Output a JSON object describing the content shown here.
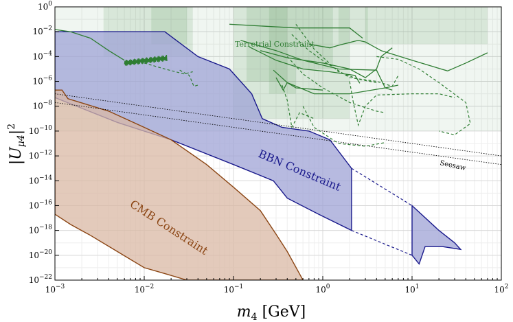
{
  "chart_data": {
    "type": "area",
    "xlabel": "m4 [GeV]",
    "ylabel": "|Uμ4|²",
    "xscale": "log",
    "yscale": "log",
    "xlim": [
      0.001,
      100
    ],
    "ylim": [
      1e-22,
      1
    ],
    "grid": true,
    "colors": {
      "terrestrial": "#2e7d32",
      "bbn_fill": "#9fa3d6",
      "bbn_edge": "#1a1a8c",
      "cmb_fill": "#d9b8a4",
      "cmb_edge": "#8b4513",
      "seesaw": "#000000"
    },
    "x_ticks": [
      {
        "value": 0.001,
        "base": "10",
        "exp": "−3"
      },
      {
        "value": 0.01,
        "base": "10",
        "exp": "−2"
      },
      {
        "value": 0.1,
        "base": "10",
        "exp": "−1"
      },
      {
        "value": 1,
        "base": "10",
        "exp": "0"
      },
      {
        "value": 10,
        "base": "10",
        "exp": "1"
      },
      {
        "value": 100,
        "base": "10",
        "exp": "2"
      }
    ],
    "y_ticks": [
      {
        "value": 1e-22,
        "base": "10",
        "exp": "−22"
      },
      {
        "value": 1e-20,
        "base": "10",
        "exp": "−20"
      },
      {
        "value": 1e-18,
        "base": "10",
        "exp": "−18"
      },
      {
        "value": 1e-16,
        "base": "10",
        "exp": "−16"
      },
      {
        "value": 1e-14,
        "base": "10",
        "exp": "−14"
      },
      {
        "value": 1e-12,
        "base": "10",
        "exp": "−12"
      },
      {
        "value": 1e-10,
        "base": "10",
        "exp": "−10"
      },
      {
        "value": 1e-08,
        "base": "10",
        "exp": "−8"
      },
      {
        "value": 1e-06,
        "base": "10",
        "exp": "−6"
      },
      {
        "value": 0.0001,
        "base": "10",
        "exp": "−4"
      },
      {
        "value": 0.01,
        "base": "10",
        "exp": "−2"
      },
      {
        "value": 1,
        "base": "10",
        "exp": "0"
      }
    ],
    "labels": {
      "terrestrial": "Terretrial Constraint",
      "bbn": "BBN Constraint",
      "cmb": "CMB Constraint",
      "seesaw": "Seesaw"
    },
    "series": [
      {
        "name": "Terretrial Constraint",
        "kind": "region-bands",
        "color": "#2e7d32",
        "bands": [
          {
            "x": [
              0.001,
              100
            ],
            "ylo": 1e-10,
            "yhi": 1
          },
          {
            "x": [
              0.0035,
              0.035
            ],
            "ylo": 0.0001,
            "yhi": 1
          },
          {
            "x": [
              0.012,
              0.03
            ],
            "ylo": 0.001,
            "yhi": 1
          },
          {
            "x": [
              0.1,
              2
            ],
            "ylo": 1e-09,
            "yhi": 1
          },
          {
            "x": [
              0.14,
              0.4
            ],
            "ylo": 1e-06,
            "yhi": 1
          },
          {
            "x": [
              0.25,
              0.5
            ],
            "ylo": 1e-07,
            "yhi": 1
          },
          {
            "x": [
              0.5,
              1.3
            ],
            "ylo": 1e-05,
            "yhi": 1
          },
          {
            "x": [
              1.5,
              3.2
            ],
            "ylo": 0.001,
            "yhi": 1
          },
          {
            "x": [
              3,
              70
            ],
            "ylo": 0.001,
            "yhi": 1
          }
        ]
      },
      {
        "name": "BBN Constraint",
        "kind": "region",
        "color": "#9fa3d6",
        "points": [
          [
            0.001,
            0.01
          ],
          [
            0.017,
            0.01
          ],
          [
            0.04,
            0.0001
          ],
          [
            0.09,
            1e-05
          ],
          [
            0.16,
            1e-07
          ],
          [
            0.21,
            1e-09
          ],
          [
            0.35,
            2e-10
          ],
          [
            0.7,
            1e-10
          ],
          [
            1.2,
            2e-11
          ],
          [
            2.1,
            1e-13
          ],
          [
            2.1,
            1e-18
          ],
          [
            0.9,
            2e-17
          ],
          [
            0.4,
            4e-16
          ],
          [
            0.28,
            1e-14
          ],
          [
            0.1,
            2e-13
          ],
          [
            0.02,
            2e-11
          ],
          [
            0.005,
            5e-10
          ],
          [
            0.001,
            5e-08
          ]
        ]
      },
      {
        "name": "BBN Constraint",
        "kind": "region",
        "color": "#9fa3d6",
        "points": [
          [
            10,
            1e-16
          ],
          [
            20,
            1e-18
          ],
          [
            30,
            1e-19
          ],
          [
            35,
            3e-20
          ],
          [
            22,
            5e-20
          ],
          [
            14,
            5e-20
          ],
          [
            12,
            2e-21
          ],
          [
            10,
            1e-20
          ]
        ]
      },
      {
        "name": "CMB Constraint",
        "kind": "region",
        "color": "#d9b8a4",
        "points": [
          [
            0.001,
            2e-07
          ],
          [
            0.0012,
            2e-07
          ],
          [
            0.0014,
            4e-08
          ],
          [
            0.004,
            4e-09
          ],
          [
            0.01,
            2e-10
          ],
          [
            0.02,
            2e-11
          ],
          [
            0.05,
            2e-13
          ],
          [
            0.1,
            3e-15
          ],
          [
            0.2,
            4e-17
          ],
          [
            0.3,
            5e-19
          ],
          [
            0.4,
            2e-20
          ],
          [
            0.6,
            1e-22
          ],
          [
            0.03,
            1e-22
          ],
          [
            0.018,
            3e-22
          ],
          [
            0.01,
            1e-21
          ],
          [
            0.005,
            2e-20
          ],
          [
            0.0025,
            4e-19
          ],
          [
            0.0015,
            3e-18
          ],
          [
            0.001,
            2e-17
          ]
        ]
      },
      {
        "name": "Seesaw",
        "kind": "band-lines",
        "color": "#000000",
        "lines": [
          [
            [
              0.001,
              1e-07
            ],
            [
              100,
              1e-12
            ]
          ],
          [
            [
              0.001,
              2e-08
            ],
            [
              100,
              2e-13
            ]
          ]
        ]
      },
      {
        "name": "Terretrial Constraint",
        "kind": "solid-curves",
        "color": "#2e7d32",
        "curves": [
          [
            [
              0.001,
              0.015
            ],
            [
              0.0015,
              0.01
            ],
            [
              0.0025,
              0.003
            ],
            [
              0.004,
              0.0003
            ],
            [
              0.006,
              5e-05
            ]
          ],
          [
            [
              0.7,
              0.001
            ],
            [
              1.2,
              0.0005
            ],
            [
              1.5,
              0.0008
            ],
            [
              2.5,
              0.002
            ],
            [
              3,
              0.0015
            ],
            [
              4.5,
              0.0003
            ]
          ],
          [
            [
              4.5,
              0.0003
            ],
            [
              10,
              5e-05
            ],
            [
              25,
              7e-06
            ],
            [
              40,
              3e-05
            ],
            [
              70,
              0.0002
            ]
          ],
          [
            [
              0.09,
              0.04
            ],
            [
              0.5,
              0.02
            ],
            [
              1.2,
              0.02
            ],
            [
              2,
              0.02
            ],
            [
              2.8,
              0.003
            ]
          ],
          [
            [
              0.12,
              0.002
            ],
            [
              0.3,
              0.0003
            ],
            [
              0.6,
              5e-05
            ],
            [
              1.5,
              1e-05
            ],
            [
              4,
              8e-06
            ],
            [
              5,
              3e-07
            ],
            [
              6,
              2e-07
            ]
          ],
          [
            [
              0.15,
              0.0006
            ],
            [
              0.3,
              5e-05
            ],
            [
              0.6,
              1e-05
            ],
            [
              1.2,
              6e-06
            ],
            [
              2.3,
              3e-06
            ],
            [
              2.6,
              7e-07
            ]
          ],
          [
            [
              0.2,
              0.0003
            ],
            [
              0.4,
              8e-05
            ],
            [
              1,
              3e-05
            ],
            [
              2,
              1e-05
            ],
            [
              3,
              2e-06
            ],
            [
              4,
              1e-05
            ],
            [
              4.5,
              0.0001
            ],
            [
              6,
              0.0005
            ]
          ],
          [
            [
              0.28,
              8e-06
            ],
            [
              0.4,
              8e-07
            ],
            [
              0.8,
              1e-07
            ],
            [
              2,
              1e-07
            ],
            [
              5,
              3e-07
            ],
            [
              7,
              5e-07
            ]
          ],
          [
            [
              0.3,
              2e-06
            ],
            [
              0.36,
              2e-07
            ],
            [
              0.4,
              8e-07
            ],
            [
              0.5,
              3e-07
            ],
            [
              1,
              2e-07
            ]
          ]
        ]
      },
      {
        "name": "Terretrial Constraint",
        "kind": "wiggle-curve",
        "color": "#2e7d32",
        "x_range": [
          0.006,
          0.018
        ],
        "y_center": 3e-05,
        "wiggle_decades": 0.5
      },
      {
        "name": "Terretrial Constraint",
        "kind": "dashed-curves",
        "color": "#2e7d32",
        "curves": [
          [
            [
              0.01,
              3e-05
            ],
            [
              0.017,
              1e-05
            ],
            [
              0.028,
              4e-06
            ],
            [
              0.035,
              6e-06
            ]
          ],
          [
            [
              0.025,
              8e-06
            ],
            [
              0.032,
              3e-06
            ],
            [
              0.036,
              4e-07
            ],
            [
              0.04,
              5e-07
            ]
          ],
          [
            [
              0.5,
              0.04
            ],
            [
              0.8,
              0.0004
            ],
            [
              1.5,
              6e-06
            ],
            [
              2.5,
              1.5e-06
            ],
            [
              4,
              8e-07
            ]
          ],
          [
            [
              0.45,
              0.006
            ],
            [
              0.7,
              0.0003
            ],
            [
              1.1,
              3e-05
            ],
            [
              2,
              2e-06
            ],
            [
              4,
              1e-06
            ],
            [
              6,
              4e-07
            ],
            [
              7,
              3e-06
            ]
          ],
          [
            [
              0.4,
              0.0001
            ],
            [
              0.6,
              4e-06
            ],
            [
              1,
              3e-07
            ],
            [
              2,
              2e-08
            ],
            [
              4,
              4e-09
            ],
            [
              5,
              3e-09
            ]
          ],
          [
            [
              2,
              1e-06
            ],
            [
              2.2,
              2e-08
            ],
            [
              2.5,
              3e-10
            ],
            [
              3,
              1e-08
            ],
            [
              4,
              8e-08
            ],
            [
              10,
              1e-07
            ],
            [
              20,
              1e-07
            ],
            [
              30,
              5e-08
            ]
          ],
          [
            [
              4,
              0.0001
            ],
            [
              7,
              6e-05
            ],
            [
              12,
              1e-05
            ],
            [
              20,
              8e-07
            ],
            [
              40,
              2e-08
            ],
            [
              45,
              4e-10
            ],
            [
              30,
              5e-11
            ],
            [
              20,
              1e-10
            ]
          ],
          [
            [
              0.35,
              5e-07
            ],
            [
              0.4,
              3e-08
            ],
            [
              0.45,
              2e-10
            ],
            [
              0.55,
              3e-09
            ],
            [
              0.8,
              1e-09
            ]
          ],
          [
            [
              0.6,
              1e-08
            ],
            [
              0.8,
              2e-10
            ],
            [
              1.5,
              1e-11
            ],
            [
              3,
              6e-12
            ],
            [
              5,
              1.2e-11
            ]
          ]
        ]
      },
      {
        "name": "BBN Constraint",
        "kind": "dashed-curves",
        "color": "#1a1a8c",
        "curves": [
          [
            [
              2.1,
              1e-13
            ],
            [
              10,
              1e-16
            ]
          ],
          [
            [
              2.1,
              1e-18
            ],
            [
              10,
              1e-20
            ]
          ]
        ]
      }
    ]
  }
}
